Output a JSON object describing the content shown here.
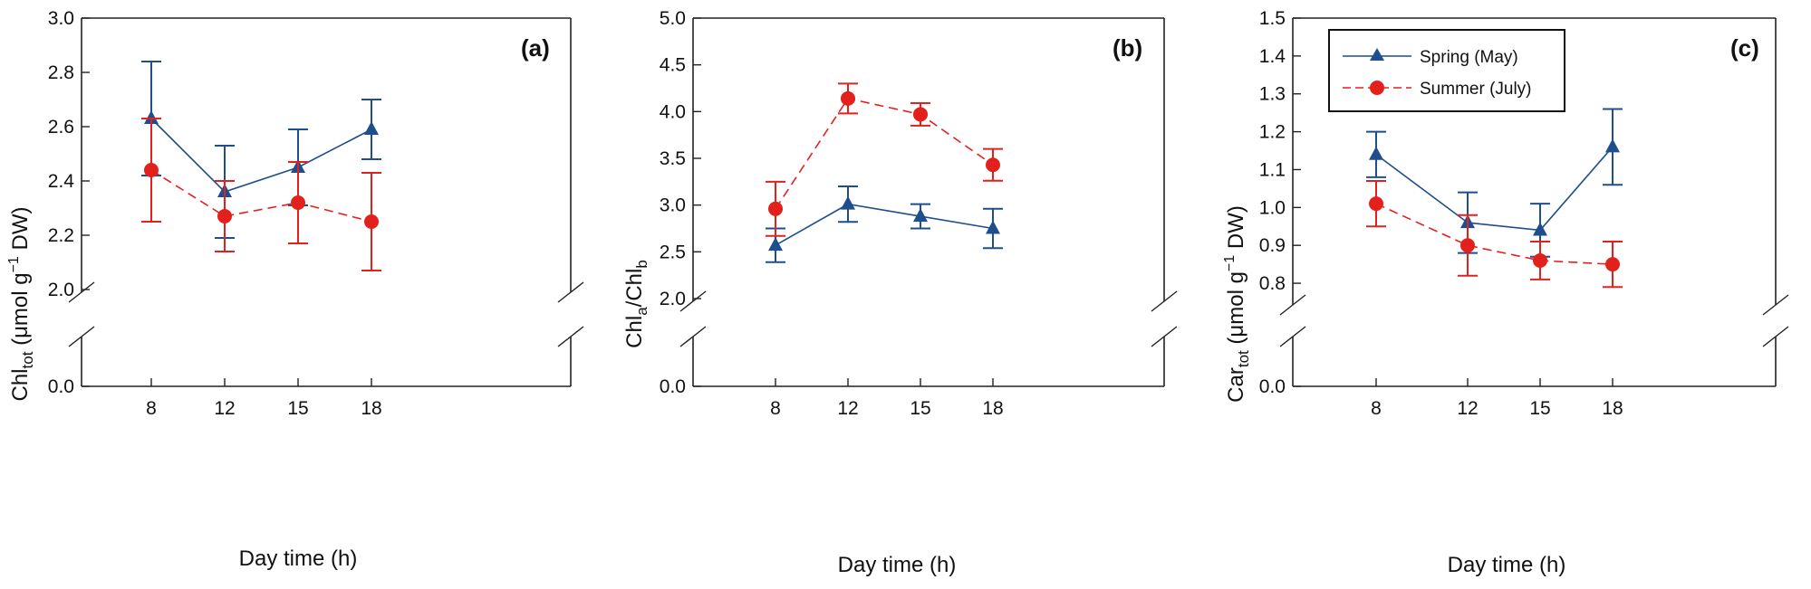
{
  "colors": {
    "spring": "#1f4e8c",
    "summer": "#e3211c",
    "axis": "#222222"
  },
  "legend": {
    "spring_label": "Spring (May)",
    "summer_label": "Summer (July)"
  },
  "chart_data": [
    {
      "type": "line",
      "panel": "(a)",
      "ylabel_main": "Chl",
      "ylabel_sub": "tot",
      "ylabel_rest": " (μmol g",
      "ylabel_sup": "−1",
      "ylabel_tail": " DW)",
      "xlabel": "Day time (h)",
      "categories": [
        "8",
        "12",
        "15",
        "18"
      ],
      "ylim": [
        2.0,
        3.0
      ],
      "yticks": [
        "2.0",
        "2.2",
        "2.4",
        "2.6",
        "2.8",
        "3.0"
      ],
      "ybreak_bottom": "0.0",
      "series": [
        {
          "name": "Spring (May)",
          "values": [
            2.63,
            2.36,
            2.45,
            2.59
          ],
          "err_up": [
            0.21,
            0.17,
            0.14,
            0.11
          ],
          "err_down": [
            0.21,
            0.17,
            0.14,
            0.11
          ]
        },
        {
          "name": "Summer (July)",
          "values": [
            2.44,
            2.27,
            2.32,
            2.25
          ],
          "err_up": [
            0.19,
            0.13,
            0.15,
            0.18
          ],
          "err_down": [
            0.19,
            0.13,
            0.15,
            0.18
          ]
        }
      ]
    },
    {
      "type": "line",
      "panel": "(b)",
      "ylabel_a": "Chl",
      "ylabel_a_sub": "a",
      "ylabel_slash": "/Chl",
      "ylabel_b_sub": "b",
      "xlabel": "Day time (h)",
      "categories": [
        "8",
        "12",
        "15",
        "18"
      ],
      "ylim": [
        2.0,
        5.0
      ],
      "yticks": [
        "2.0",
        "2.5",
        "3.0",
        "3.5",
        "4.0",
        "4.5",
        "5.0"
      ],
      "ybreak_bottom": "0.0",
      "series": [
        {
          "name": "Spring (May)",
          "values": [
            2.57,
            3.01,
            2.88,
            2.75
          ],
          "err_up": [
            0.18,
            0.19,
            0.13,
            0.21
          ],
          "err_down": [
            0.18,
            0.19,
            0.13,
            0.21
          ]
        },
        {
          "name": "Summer (July)",
          "values": [
            2.96,
            4.14,
            3.97,
            3.43
          ],
          "err_up": [
            0.29,
            0.16,
            0.12,
            0.17
          ],
          "err_down": [
            0.29,
            0.16,
            0.12,
            0.17
          ]
        }
      ]
    },
    {
      "type": "line",
      "panel": "(c)",
      "ylabel_main": "Car",
      "ylabel_sub": "tot",
      "ylabel_rest": " (μmol g",
      "ylabel_sup": "−1",
      "ylabel_tail": " DW)",
      "xlabel": "Day time (h)",
      "categories": [
        "8",
        "12",
        "15",
        "18"
      ],
      "ylim": [
        0.75,
        1.5
      ],
      "yticks": [
        "0.8",
        "0.9",
        "1.0",
        "1.1",
        "1.2",
        "1.3",
        "1.4",
        "1.5"
      ],
      "ybreak_bottom": "0.0",
      "legend_position": "top-left",
      "series": [
        {
          "name": "Spring (May)",
          "values": [
            1.14,
            0.96,
            0.94,
            1.16
          ],
          "err_up": [
            0.06,
            0.08,
            0.07,
            0.1
          ],
          "err_down": [
            0.06,
            0.08,
            0.07,
            0.1
          ]
        },
        {
          "name": "Summer (July)",
          "values": [
            1.01,
            0.9,
            0.86,
            0.85
          ],
          "err_up": [
            0.06,
            0.08,
            0.05,
            0.06
          ],
          "err_down": [
            0.06,
            0.08,
            0.05,
            0.06
          ]
        }
      ]
    }
  ]
}
